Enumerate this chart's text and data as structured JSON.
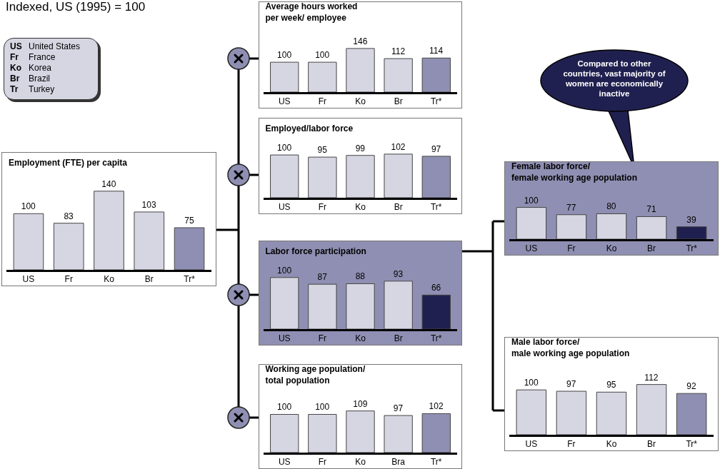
{
  "chart_data": [
    {
      "type": "other",
      "annotations": [
        "Indexed, US (1995) = 100"
      ]
    },
    {
      "type": "other",
      "annotations": [
        "US",
        "United States",
        "Fr",
        "France",
        "Ko",
        "Korea",
        "Br",
        "Brazil",
        "Tr",
        "Turkey"
      ]
    },
    {
      "type": "bar",
      "title": "Employment (FTE) per capita",
      "categories": [
        "US",
        "Fr",
        "Ko",
        "Br",
        "Tr*"
      ],
      "values": [
        100,
        83,
        140,
        103,
        75
      ],
      "colors": [
        "#d6d6e3",
        "#d6d6e3",
        "#d6d6e3",
        "#d6d6e3",
        "#8f8fb3"
      ],
      "data_labels": true
    },
    {
      "type": "bar",
      "title": "Average hours worked\nper week/ employee",
      "categories": [
        "US",
        "Fr",
        "Ko",
        "Br",
        "Tr*"
      ],
      "values": [
        100,
        100,
        146,
        112,
        114
      ],
      "colors": [
        "#d6d6e3",
        "#d6d6e3",
        "#d6d6e3",
        "#d6d6e3",
        "#8f8fb3"
      ],
      "data_labels": true
    },
    {
      "type": "bar",
      "title": "Employed/labor force",
      "categories": [
        "US",
        "Fr",
        "Ko",
        "Br",
        "Tr*"
      ],
      "values": [
        100,
        95,
        99,
        102,
        97
      ],
      "colors": [
        "#d6d6e3",
        "#d6d6e3",
        "#d6d6e3",
        "#d6d6e3",
        "#8f8fb3"
      ],
      "data_labels": true
    },
    {
      "type": "bar",
      "title": "Labor force participation",
      "categories": [
        "US",
        "Fr",
        "Ko",
        "Br",
        "Tr*"
      ],
      "values": [
        100,
        87,
        88,
        93,
        66
      ],
      "colors": [
        "#d6d6e3",
        "#d6d6e3",
        "#d6d6e3",
        "#d6d6e3",
        "#202050"
      ],
      "data_labels": true
    },
    {
      "type": "bar",
      "title": "Working age population/\ntotal population",
      "categories": [
        "US",
        "Fr",
        "Ko",
        "Bra",
        "Tr*"
      ],
      "values": [
        100,
        100,
        109,
        97,
        102
      ],
      "colors": [
        "#d6d6e3",
        "#d6d6e3",
        "#d6d6e3",
        "#d6d6e3",
        "#8f8fb3"
      ],
      "data_labels": true
    },
    {
      "type": "bar",
      "title": "Female labor force/\nfemale working age population",
      "categories": [
        "US",
        "Fr",
        "Ko",
        "Br",
        "Tr*"
      ],
      "values": [
        100,
        77,
        80,
        71,
        39
      ],
      "colors": [
        "#d6d6e3",
        "#d6d6e3",
        "#d6d6e3",
        "#d6d6e3",
        "#202050"
      ],
      "data_labels": true,
      "annotations": [
        "Compared to other countries, vast majority of women are economically inactive"
      ]
    },
    {
      "type": "bar",
      "title": "Male labor force/\nmale working age population",
      "categories": [
        "US",
        "Fr",
        "Ko",
        "Br",
        "Tr*"
      ],
      "values": [
        100,
        97,
        95,
        112,
        92
      ],
      "colors": [
        "#d6d6e3",
        "#d6d6e3",
        "#d6d6e3",
        "#d6d6e3",
        "#8f8fb3"
      ],
      "data_labels": true
    }
  ]
}
